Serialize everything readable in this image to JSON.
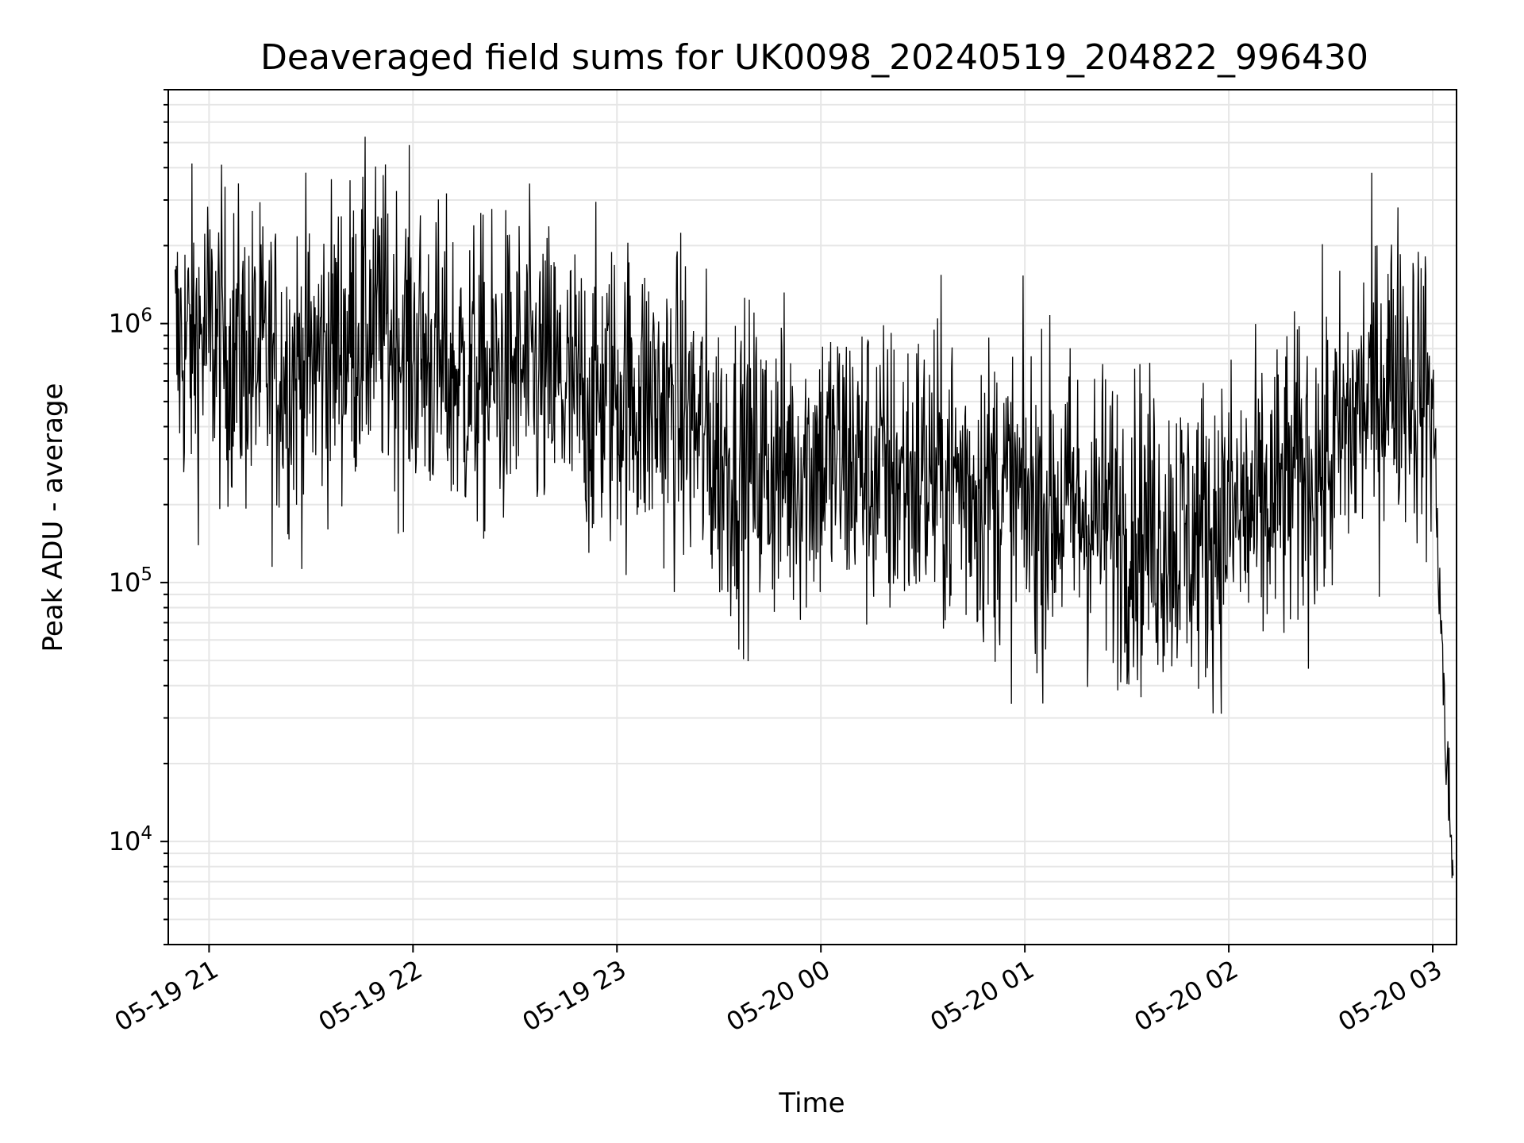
{
  "chart_data": {
    "type": "line",
    "title": "Deaveraged field sums for UK0098_20240519_204822_996430",
    "xlabel": "Time",
    "ylabel": "Peak ADU - average",
    "yscale": "log",
    "ylim": [
      4000,
      8000000
    ],
    "xlim": [
      "2024-05-19 20:48",
      "2024-05-20 03:07"
    ],
    "grid": true,
    "x_ticks": [
      "05-19 21",
      "05-19 22",
      "05-19 23",
      "05-20 00",
      "05-20 01",
      "05-20 02",
      "05-20 03"
    ],
    "y_ticks": [
      {
        "mantissa": "10",
        "exponent": "4",
        "value": 10000
      },
      {
        "mantissa": "10",
        "exponent": "5",
        "value": 100000
      },
      {
        "mantissa": "10",
        "exponent": "6",
        "value": 1000000
      }
    ],
    "line_color": "#000000",
    "series": [
      {
        "x": [
          "2024-05-19 20:50",
          "2024-05-19 21:00",
          "2024-05-19 21:10",
          "2024-05-19 21:20",
          "2024-05-19 21:30",
          "2024-05-19 21:40",
          "2024-05-19 21:50",
          "2024-05-19 22:00",
          "2024-05-19 22:10",
          "2024-05-19 22:20",
          "2024-05-19 22:30",
          "2024-05-19 22:40",
          "2024-05-19 22:50",
          "2024-05-19 23:00",
          "2024-05-19 23:10",
          "2024-05-19 23:20",
          "2024-05-19 23:30",
          "2024-05-19 23:40",
          "2024-05-19 23:50",
          "2024-05-20 00:00",
          "2024-05-20 00:10",
          "2024-05-20 00:20",
          "2024-05-20 00:30",
          "2024-05-20 00:40",
          "2024-05-20 00:50",
          "2024-05-20 01:00",
          "2024-05-20 01:10",
          "2024-05-20 01:20",
          "2024-05-20 01:30",
          "2024-05-20 01:40",
          "2024-05-20 01:50",
          "2024-05-20 02:00",
          "2024-05-20 02:10",
          "2024-05-20 02:20",
          "2024-05-20 02:30",
          "2024-05-20 02:40",
          "2024-05-20 02:50",
          "2024-05-20 03:00",
          "2024-05-20 03:02",
          "2024-05-20 03:04",
          "2024-05-20 03:06"
        ],
        "y": [
          800000,
          900000,
          750000,
          650000,
          700000,
          900000,
          1000000,
          800000,
          650000,
          600000,
          650000,
          600000,
          500000,
          550000,
          500000,
          450000,
          300000,
          280000,
          280000,
          300000,
          290000,
          250000,
          260000,
          250000,
          230000,
          200000,
          200000,
          180000,
          170000,
          160000,
          150000,
          180000,
          180000,
          250000,
          300000,
          500000,
          700000,
          500000,
          100000,
          20000,
          8000
        ]
      }
    ]
  }
}
